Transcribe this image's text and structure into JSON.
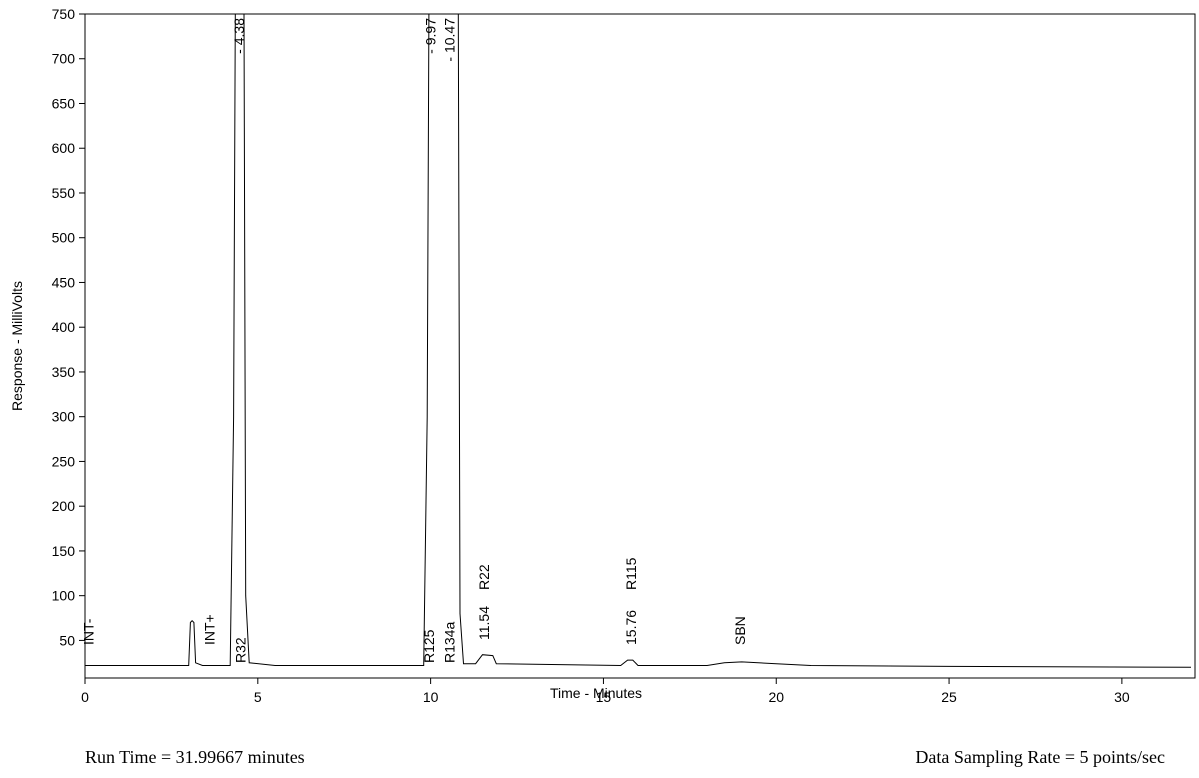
{
  "chart_data": {
    "type": "line",
    "xlabel": "Time - Minutes",
    "ylabel": "Response - MilliVolts",
    "xlim": [
      0,
      32
    ],
    "ylim": [
      8,
      750
    ],
    "xticks": [
      0,
      5,
      10,
      15,
      20,
      25,
      30
    ],
    "yticks": [
      50,
      100,
      150,
      200,
      250,
      300,
      350,
      400,
      450,
      500,
      550,
      600,
      650,
      700,
      750
    ],
    "series": [
      {
        "color": "#000000",
        "x": [
          0,
          3.0,
          3.05,
          3.1,
          3.15,
          3.2,
          3.4,
          4.2,
          4.3,
          4.35,
          4.6,
          4.65,
          4.75,
          5.5,
          9.8,
          9.9,
          9.95,
          10.3,
          10.35,
          10.8,
          10.85,
          10.95,
          11.3,
          11.5,
          11.8,
          11.9,
          15.5,
          15.7,
          15.85,
          16,
          18,
          18.5,
          19,
          20,
          21,
          25,
          32
        ],
        "values": [
          22,
          22,
          70,
          72,
          70,
          25,
          22,
          22,
          300,
          750,
          750,
          100,
          25,
          22,
          22,
          300,
          750,
          750,
          750,
          750,
          80,
          24,
          24,
          34,
          33,
          24,
          22,
          28,
          28,
          22,
          22,
          25,
          26,
          24,
          22,
          21,
          20
        ]
      }
    ],
    "annotations": [
      {
        "text": "INT-",
        "x": 0.1
      },
      {
        "text": "INT+",
        "x": 3.6
      },
      {
        "text": "R32",
        "x": 4.5
      },
      {
        "text": "- 4.38",
        "x": 4.45
      },
      {
        "text": "- 9.97",
        "x": 10.0
      },
      {
        "text": "- 10.47",
        "x": 10.55
      },
      {
        "text": "R125",
        "x": 9.95
      },
      {
        "text": "R134a",
        "x": 10.55
      },
      {
        "text": "11.54",
        "x": 11.55
      },
      {
        "text": "R22",
        "x": 11.55
      },
      {
        "text": "15.76",
        "x": 15.8
      },
      {
        "text": "R115",
        "x": 15.8
      },
      {
        "text": "SBN",
        "x": 18.95
      }
    ]
  },
  "footer": {
    "left": "Run Time = 31.99667 minutes",
    "right": "Data Sampling Rate = 5 points/sec"
  }
}
